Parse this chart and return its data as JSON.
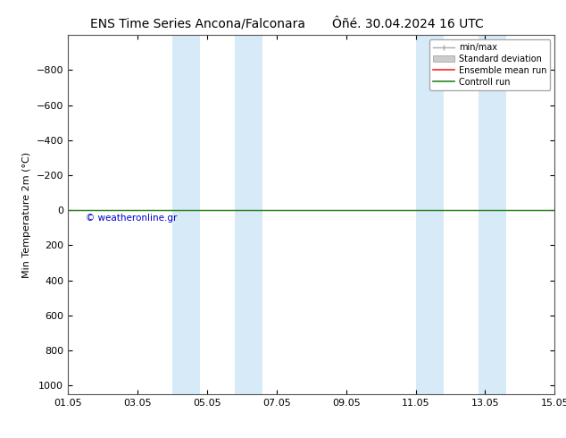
{
  "title_left": "ENS Time Series Ancona/Falconara",
  "title_right": "Ôñé. 30.04.2024 16 UTC",
  "ylabel": "Min Temperature 2m (°C)",
  "ylim_top": -1000,
  "ylim_bottom": 1050,
  "yticks": [
    -800,
    -600,
    -400,
    -200,
    0,
    200,
    400,
    600,
    800,
    1000
  ],
  "xlim_start": 0,
  "xlim_end": 14,
  "xtick_labels": [
    "01.05",
    "03.05",
    "05.05",
    "07.05",
    "09.05",
    "11.05",
    "13.05",
    "15.05"
  ],
  "xtick_positions": [
    0,
    2,
    4,
    6,
    8,
    10,
    12,
    14
  ],
  "blue_bands": [
    [
      3.0,
      3.8
    ],
    [
      4.8,
      5.6
    ],
    [
      10.0,
      10.8
    ],
    [
      11.8,
      12.6
    ]
  ],
  "blue_band_color": "#d6eaf8",
  "control_run_y": 0,
  "ensemble_mean_y": 0,
  "control_run_color": "#228B22",
  "ensemble_mean_color": "#ff2222",
  "watermark": "© weatheronline.gr",
  "watermark_color": "#0000cc",
  "background_color": "#ffffff",
  "legend_labels": [
    "min/max",
    "Standard deviation",
    "Ensemble mean run",
    "Controll run"
  ],
  "legend_line_colors": [
    "#aaaaaa",
    "#cccccc",
    "#ff2222",
    "#228B22"
  ],
  "title_fontsize": 10,
  "axis_fontsize": 8,
  "fig_width": 6.34,
  "fig_height": 4.9,
  "fig_dpi": 100
}
